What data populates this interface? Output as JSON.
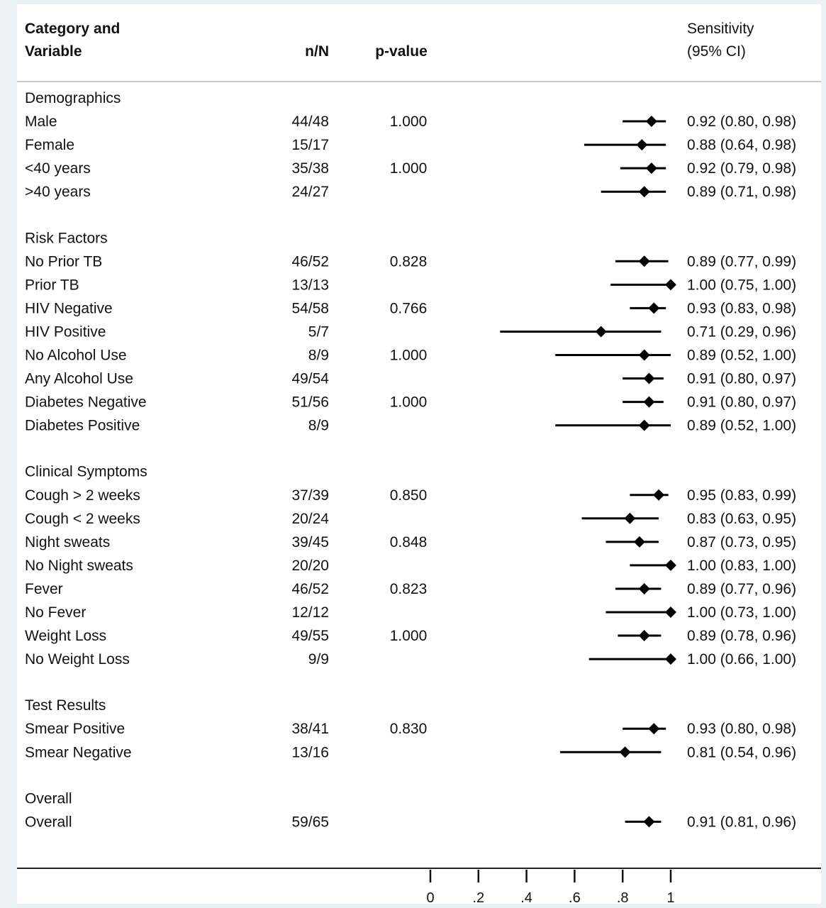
{
  "headers": {
    "category_line1": "Category",
    "category_and": "and",
    "category_line2": "Variable",
    "nN": "n/N",
    "pvalue": "p-value",
    "sens_line1": "Sensitivity",
    "sens_line2": "(95% CI)"
  },
  "chart_data": {
    "type": "forest",
    "title": "",
    "xlabel": "",
    "xlim": [
      0,
      1
    ],
    "xticks": [
      "0",
      ".2",
      ".4",
      ".6",
      ".8",
      "1"
    ],
    "xtick_values": [
      0,
      0.2,
      0.4,
      0.6,
      0.8,
      1
    ],
    "groups": [
      {
        "name": "Demographics",
        "rows": [
          {
            "label": "Male",
            "nN": "44/48",
            "p": "1.000",
            "est": 0.92,
            "lo": 0.8,
            "hi": 0.98,
            "ci": "0.92 (0.80, 0.98)"
          },
          {
            "label": "Female",
            "nN": "15/17",
            "p": "",
            "est": 0.88,
            "lo": 0.64,
            "hi": 0.98,
            "ci": "0.88 (0.64, 0.98)"
          },
          {
            "label": "<40 years",
            "nN": "35/38",
            "p": "1.000",
            "est": 0.92,
            "lo": 0.79,
            "hi": 0.98,
            "ci": "0.92 (0.79, 0.98)"
          },
          {
            "label": ">40 years",
            "nN": "24/27",
            "p": "",
            "est": 0.89,
            "lo": 0.71,
            "hi": 0.98,
            "ci": "0.89 (0.71, 0.98)"
          }
        ]
      },
      {
        "name": "Risk Factors",
        "rows": [
          {
            "label": "No Prior TB",
            "nN": "46/52",
            "p": "0.828",
            "est": 0.89,
            "lo": 0.77,
            "hi": 0.99,
            "ci": "0.89 (0.77, 0.99)"
          },
          {
            "label": "Prior TB",
            "nN": "13/13",
            "p": "",
            "est": 1.0,
            "lo": 0.75,
            "hi": 1.0,
            "ci": "1.00 (0.75, 1.00)"
          },
          {
            "label": "HIV Negative",
            "nN": "54/58",
            "p": "0.766",
            "est": 0.93,
            "lo": 0.83,
            "hi": 0.98,
            "ci": "0.93 (0.83, 0.98)"
          },
          {
            "label": "HIV Positive",
            "nN": "5/7",
            "p": "",
            "est": 0.71,
            "lo": 0.29,
            "hi": 0.96,
            "ci": "0.71 (0.29, 0.96)"
          },
          {
            "label": "No Alcohol Use",
            "nN": "8/9",
            "p": "1.000",
            "est": 0.89,
            "lo": 0.52,
            "hi": 1.0,
            "ci": "0.89 (0.52, 1.00)"
          },
          {
            "label": "Any Alcohol Use",
            "nN": "49/54",
            "p": "",
            "est": 0.91,
            "lo": 0.8,
            "hi": 0.97,
            "ci": "0.91 (0.80, 0.97)"
          },
          {
            "label": "Diabetes Negative",
            "nN": "51/56",
            "p": "1.000",
            "est": 0.91,
            "lo": 0.8,
            "hi": 0.97,
            "ci": "0.91 (0.80, 0.97)"
          },
          {
            "label": "Diabetes Positive",
            "nN": "8/9",
            "p": "",
            "est": 0.89,
            "lo": 0.52,
            "hi": 1.0,
            "ci": "0.89 (0.52, 1.00)"
          }
        ]
      },
      {
        "name": "Clinical Symptoms",
        "rows": [
          {
            "label": "Cough > 2 weeks",
            "nN": "37/39",
            "p": "0.850",
            "est": 0.95,
            "lo": 0.83,
            "hi": 0.99,
            "ci": "0.95 (0.83, 0.99)"
          },
          {
            "label": "Cough < 2 weeks",
            "nN": "20/24",
            "p": "",
            "est": 0.83,
            "lo": 0.63,
            "hi": 0.95,
            "ci": "0.83 (0.63, 0.95)"
          },
          {
            "label": "Night sweats",
            "nN": "39/45",
            "p": "0.848",
            "est": 0.87,
            "lo": 0.73,
            "hi": 0.95,
            "ci": "0.87 (0.73, 0.95)"
          },
          {
            "label": "No Night sweats",
            "nN": "20/20",
            "p": "",
            "est": 1.0,
            "lo": 0.83,
            "hi": 1.0,
            "ci": "1.00 (0.83, 1.00)"
          },
          {
            "label": "Fever",
            "nN": "46/52",
            "p": "0.823",
            "est": 0.89,
            "lo": 0.77,
            "hi": 0.96,
            "ci": "0.89 (0.77, 0.96)"
          },
          {
            "label": "No Fever",
            "nN": "12/12",
            "p": "",
            "est": 1.0,
            "lo": 0.73,
            "hi": 1.0,
            "ci": "1.00 (0.73, 1.00)"
          },
          {
            "label": "Weight Loss",
            "nN": "49/55",
            "p": "1.000",
            "est": 0.89,
            "lo": 0.78,
            "hi": 0.96,
            "ci": "0.89 (0.78, 0.96)"
          },
          {
            "label": "No Weight Loss",
            "nN": "9/9",
            "p": "",
            "est": 1.0,
            "lo": 0.66,
            "hi": 1.0,
            "ci": "1.00 (0.66, 1.00)"
          }
        ]
      },
      {
        "name": "Test Results",
        "rows": [
          {
            "label": "Smear Positive",
            "nN": "38/41",
            "p": "0.830",
            "est": 0.93,
            "lo": 0.8,
            "hi": 0.98,
            "ci": "0.93 (0.80, 0.98)"
          },
          {
            "label": "Smear Negative",
            "nN": "13/16",
            "p": "",
            "est": 0.81,
            "lo": 0.54,
            "hi": 0.96,
            "ci": "0.81 (0.54, 0.96)"
          }
        ]
      },
      {
        "name": "Overall",
        "rows": [
          {
            "label": "Overall",
            "nN": "59/65",
            "p": "",
            "est": 0.91,
            "lo": 0.81,
            "hi": 0.96,
            "ci": "0.91 (0.81, 0.96)"
          }
        ]
      }
    ]
  }
}
